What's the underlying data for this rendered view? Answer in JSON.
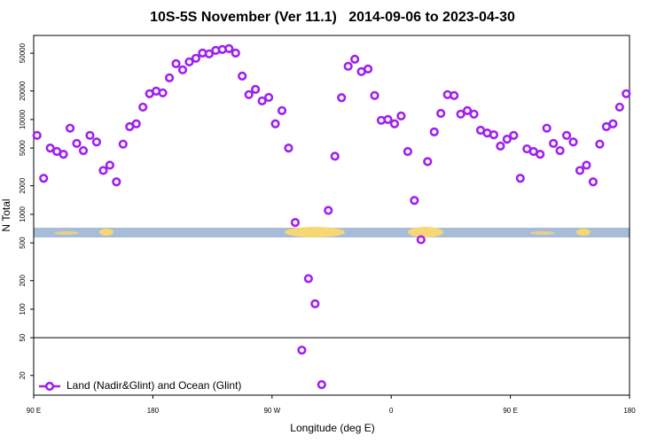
{
  "chart_data": {
    "type": "scatter",
    "title": "10S-5S November (Ver 11.1)   2014-09-06 to 2023-04-30",
    "x_label": "Longitude (deg E)",
    "y_label": "N Total",
    "log_y": true,
    "legend": "bottom-left",
    "hline": 50,
    "xlim": [
      90,
      540
    ],
    "ylim": [
      12.4,
      77000
    ],
    "xticks": [
      {
        "value": 90,
        "label": "90 E"
      },
      180,
      {
        "value": 270,
        "label": "90 W"
      },
      {
        "value": 360,
        "label": "0"
      },
      {
        "value": 450,
        "label": "90 E"
      },
      {
        "value": 540,
        "label": "180"
      }
    ],
    "yticks": [
      20,
      50,
      100,
      200,
      500,
      1000,
      2000,
      5000,
      10000,
      20000,
      50000
    ],
    "series": [
      {
        "name": "Land (Nadir&Glint) and Ocean (Glint)",
        "color": "#a020f0",
        "x": [
          92.5,
          97.5,
          102.5,
          107.5,
          112.5,
          117.5,
          122.5,
          127.5,
          132.5,
          137.5,
          142.5,
          147.5,
          152.5,
          157.5,
          162.5,
          167.5,
          172.5,
          177.5,
          182.5,
          187.5,
          192.5,
          197.5,
          202.5,
          207.5,
          212.5,
          217.5,
          222.5,
          227.5,
          232.5,
          237.5,
          242.5,
          247.5,
          252.5,
          257.5,
          262.5,
          267.5,
          272.5,
          277.5,
          282.5,
          287.5,
          292.5,
          297.5,
          302.5,
          307.5,
          312.5,
          317.5,
          322.5,
          327.5,
          332.5,
          337.5,
          342.5,
          347.5,
          352.5,
          357.5,
          362.5,
          367.5,
          372.5,
          377.5,
          382.5,
          387.5,
          392.5,
          397.5,
          402.5,
          407.5,
          412.5,
          417.5,
          422.5,
          427.5,
          432.5,
          437.5,
          442.5,
          447.5,
          452.5,
          457.5,
          462.5,
          467.5,
          472.5,
          477.5,
          482.5,
          487.5,
          492.5,
          497.5,
          502.5,
          507.5,
          512.5,
          517.5,
          522.5,
          527.5,
          532.5,
          537.5
        ],
        "values": [
          6800,
          2400,
          5000,
          4600,
          4300,
          8100,
          5600,
          4700,
          6800,
          5800,
          2900,
          3300,
          2200,
          5500,
          8400,
          9000,
          13500,
          18700,
          19900,
          19100,
          27500,
          38800,
          33400,
          40500,
          44200,
          50200,
          49200,
          53600,
          54700,
          55900,
          50200,
          28700,
          18300,
          20800,
          15700,
          17100,
          9000,
          12400,
          5000,
          820,
          37,
          210,
          114,
          16,
          1100,
          4100,
          17000,
          36400,
          43200,
          32000,
          34100,
          17900,
          9800,
          10000,
          9000,
          10900,
          4600,
          1400,
          540,
          3600,
          7400,
          11600,
          18300,
          17900,
          11400,
          12400,
          11400,
          7700,
          7200,
          6900,
          5250,
          6200,
          6800,
          2400,
          4900,
          4600,
          4300,
          8100,
          5600,
          4700,
          6800,
          5800,
          2900,
          3300,
          2200,
          5500,
          8400,
          9000,
          13500,
          18700
        ]
      }
    ]
  }
}
